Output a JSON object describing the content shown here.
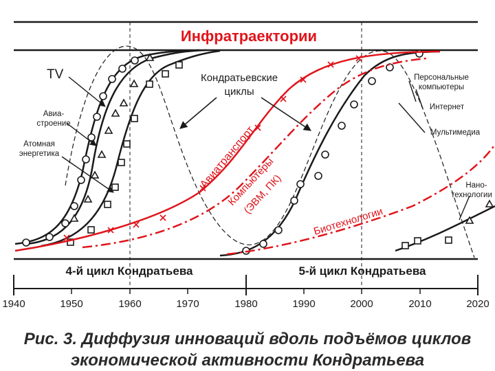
{
  "title": "Инфратраектории",
  "labels": {
    "tv": "TV",
    "aviation_1": "Авиа-",
    "aviation_2": "строение",
    "atomic_1": "Атомная",
    "atomic_2": "энергетика",
    "kondratiev_1": "Кондратьевские",
    "kondratiev_2": "циклы",
    "air_transport": "Авиатранспорт",
    "computers_1": "Компьютеры",
    "computers_2": "(ЭВМ, ПК)",
    "biotech": "Биотехнологии",
    "pc_1": "Персональные",
    "pc_2": "компьютеры",
    "internet": "Интернет",
    "multimedia": "Мультимедиа",
    "nano_1": "Нано-",
    "nano_2": "технологии"
  },
  "cycles": {
    "fourth": "4-й цикл Кондратьева",
    "fifth": "5-й цикл Кондратьева"
  },
  "axis": {
    "ticks": [
      "1940",
      "1950",
      "1960",
      "1970",
      "1980",
      "1990",
      "2000",
      "2010",
      "2020"
    ]
  },
  "caption": {
    "line1": "Рис. 3. Диффузия инноваций вдоль подъёмов циклов",
    "line2": "экономической активности Кондратьева"
  },
  "colors": {
    "red": "#e0141b",
    "black": "#1a1a1a"
  }
}
